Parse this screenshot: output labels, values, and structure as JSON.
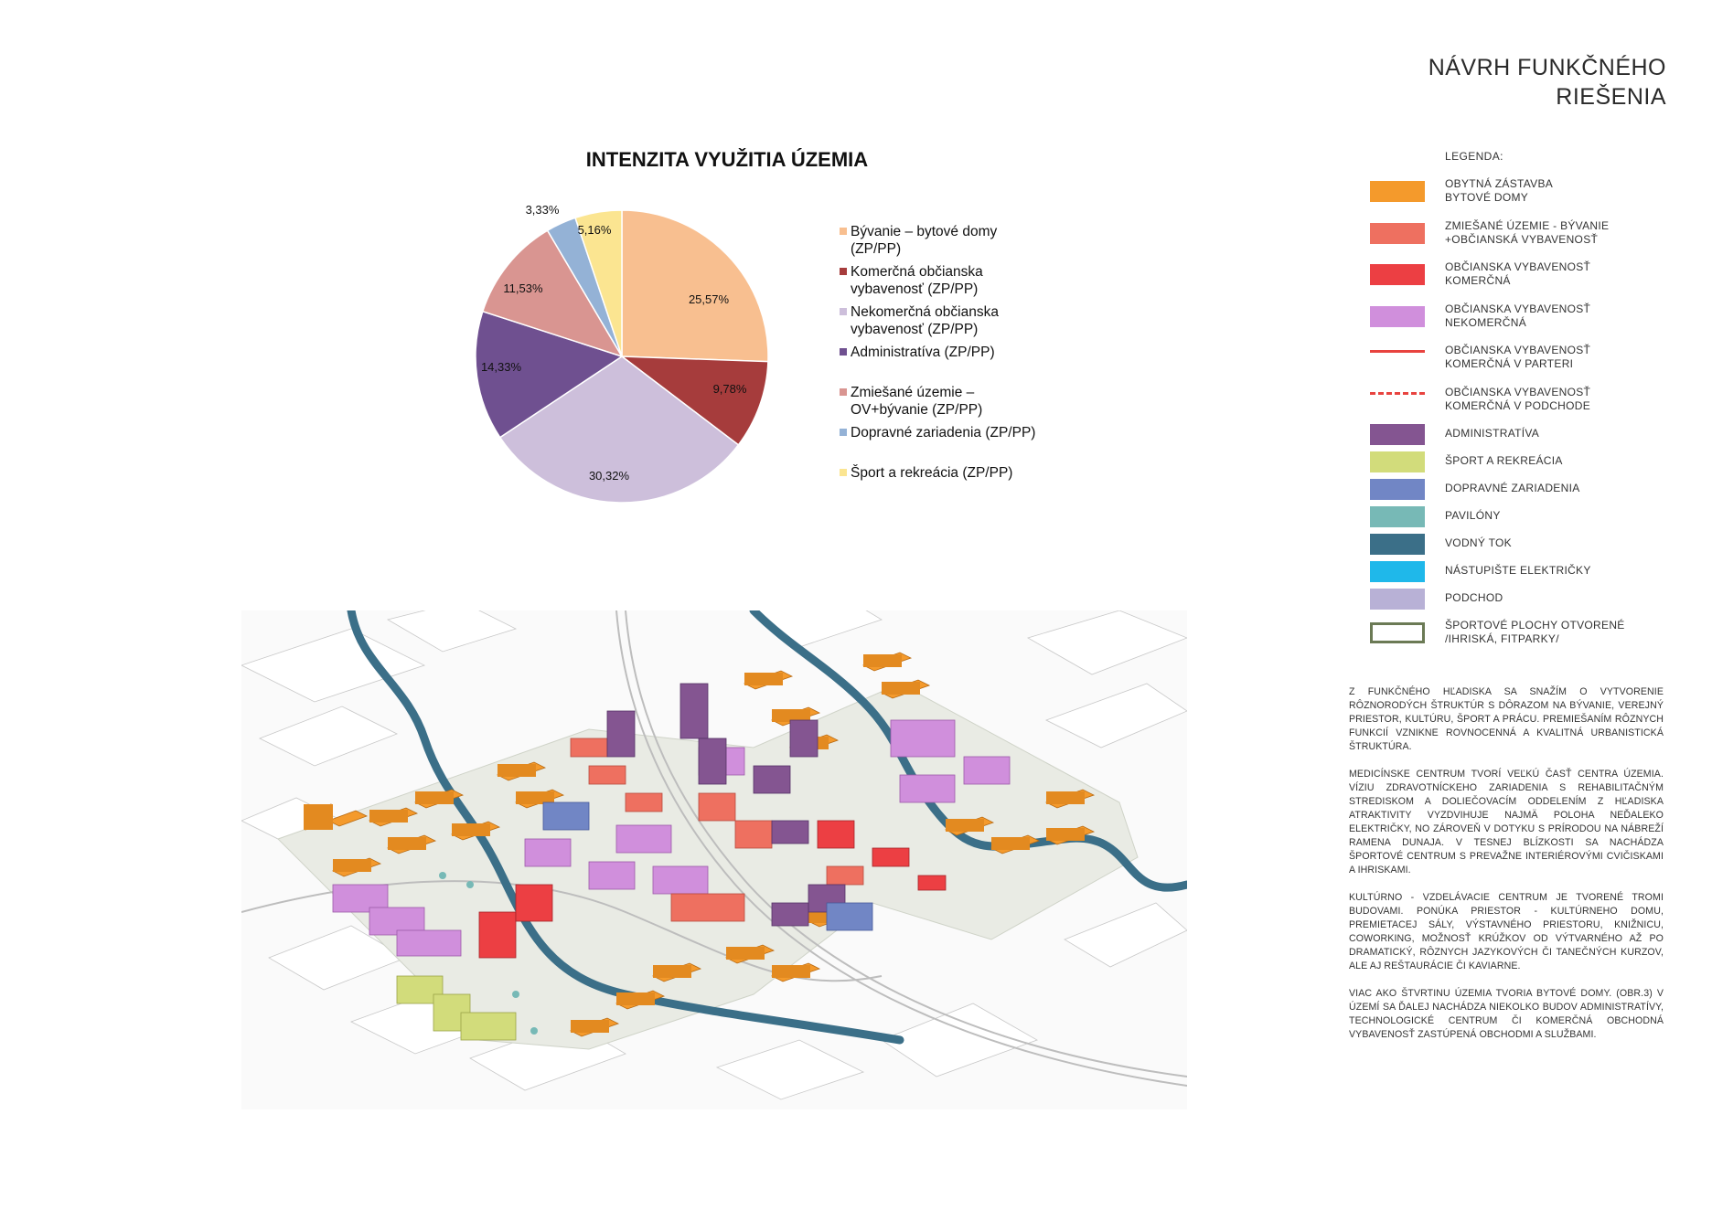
{
  "header": {
    "title_line1": "NÁVRH FUNKČNÉHO",
    "title_line2": "RIEŠENIA"
  },
  "chart_data": {
    "type": "pie",
    "title": "INTENZITA VYUŽITIA ÚZEMIA",
    "slices": [
      {
        "label": "Bývanie – bytové domy (ZP/PP)",
        "value": 25.57,
        "display": "25,57%",
        "color": "#f8bf90"
      },
      {
        "label": "Komerčná občianska vybavenosť (ZP/PP)",
        "value": 9.78,
        "display": "9,78%",
        "color": "#a63c3c"
      },
      {
        "label": "Nekomerčná občianska vybavenosť (ZP/PP)",
        "value": 30.32,
        "display": "30,32%",
        "color": "#cdbfdb"
      },
      {
        "label": "Administratíva (ZP/PP)",
        "value": 14.33,
        "display": "14,33%",
        "color": "#6f5090"
      },
      {
        "label": "Zmiešané územie – OV+bývanie (ZP/PP)",
        "value": 11.53,
        "display": "11,53%",
        "color": "#d99591"
      },
      {
        "label": "Dopravné zariadenia (ZP/PP)",
        "value": 3.33,
        "display": "3,33%",
        "color": "#94b2d6"
      },
      {
        "label": "Šport a rekreácia (ZP/PP)",
        "value": 5.16,
        "display": "5,16%",
        "color": "#fbe591"
      }
    ],
    "legend_placement": "right"
  },
  "pie_legend": [
    {
      "line1": "Bývanie – bytové domy",
      "line2": "(ZP/PP)"
    },
    {
      "line1": "Komerčná občianska",
      "line2": "vybavenosť (ZP/PP)"
    },
    {
      "line1": "Nekomerčná občianska",
      "line2": "vybavenosť (ZP/PP)"
    },
    {
      "line1": "Administratíva (ZP/PP)",
      "line2": ""
    },
    {
      "line1": "Zmiešané územie –",
      "line2": "OV+bývanie (ZP/PP)"
    },
    {
      "line1": "Dopravné zariadenia (ZP/PP)",
      "line2": ""
    },
    {
      "line1": "Šport a rekreácia (ZP/PP)",
      "line2": ""
    }
  ],
  "legend": {
    "heading": "LEGENDA:",
    "items": [
      {
        "line1": "OBYTNÁ ZÁSTAVBA",
        "line2": "BYTOVÉ DOMY",
        "color": "#f49a2c",
        "style": "fill"
      },
      {
        "line1": "ZMIEŠANÉ ÚZEMIE - BÝVANIE",
        "line2": "+OBČIANSKÁ VYBAVENOSŤ",
        "color": "#ee7060",
        "style": "fill"
      },
      {
        "line1": "OBČIANSKA VYBAVENOSŤ",
        "line2": "KOMERČNÁ",
        "color": "#ec3f43",
        "style": "fill"
      },
      {
        "line1": "OBČIANSKA VYBAVENOSŤ",
        "line2": "NEKOMERČNÁ",
        "color": "#d08fdc",
        "style": "fill"
      },
      {
        "line1": "OBČIANSKA VYBAVENOSŤ",
        "line2": "KOMERČNÁ V PARTERI",
        "color": "#e8433f",
        "style": "line"
      },
      {
        "line1": "OBČIANSKA VYBAVENOSŤ",
        "line2": "KOMERČNÁ V PODCHODE",
        "color": "#e8433f",
        "style": "dash"
      },
      {
        "line1": "ADMINISTRATÍVA",
        "line2": "",
        "color": "#845591",
        "style": "fill"
      },
      {
        "line1": "ŠPORT A REKREÁCIA",
        "line2": "",
        "color": "#d2dc7b",
        "style": "fill"
      },
      {
        "line1": "DOPRAVNÉ ZARIADENIA",
        "line2": "",
        "color": "#7186c5",
        "style": "fill"
      },
      {
        "line1": "PAVILÓNY",
        "line2": "",
        "color": "#77b9b6",
        "style": "fill"
      },
      {
        "line1": "VODNÝ TOK",
        "line2": "",
        "color": "#3b6f88",
        "style": "fill"
      },
      {
        "line1": "NÁSTUPIŠTE ELEKTRIČKY",
        "line2": "",
        "color": "#1fb8ea",
        "style": "fill"
      },
      {
        "line1": "PODCHOD",
        "line2": "",
        "color": "#b8b1d6",
        "style": "fill"
      },
      {
        "line1": "ŠPORTOVÉ PLOCHY OTVORENÉ",
        "line2": "/IHRISKÁ, FITPARKY/",
        "color": "#6b7a55",
        "style": "outline"
      }
    ]
  },
  "body_text": [
    "Z funkčného hľadiska sa snažím o vytvorenie rôznorodých štruktúr s dôrazom na bývanie, verejný priestor, kultúru, šport a prácu. Premiešaním rôznych funkcií vznikne rovnocenná a kvalitná urbanistická štruktúra.",
    "Medicínske centrum tvorí veľkú časť centra územia. Víziu zdravotníckeho zariadenia s rehabilitačným strediskom a doliečovacím oddelením z hľadiska atraktivity vyzdvihuje najmä poloha neďaleko električky, no zároveň v dotyku s prírodou na nábreží ramena Dunaja. V tesnej blízkosti sa nachádza športové centrum s prevažne interiérovými cvičiskami a ihriskami.",
    "Kultúrno - vzdelávacie centrum je tvorené tromi budovami. Ponúka priestor - kultúrneho domu, premietacej sály, výstavného priestoru, knižnicu, coworking, možnosť krúžkov od výtvarného až po dramatický, rôznych jazykových či tanečných kurzov, ale aj reštaurácie či kaviarne.",
    "Viac ako štvrtinu územia tvoria bytové domy. (obr.3) V území sa ďalej nachádza niekolko budov administratívy, technologické centrum či komerčná obchodná vybavenosť zastúpená obchodmi a službami."
  ]
}
